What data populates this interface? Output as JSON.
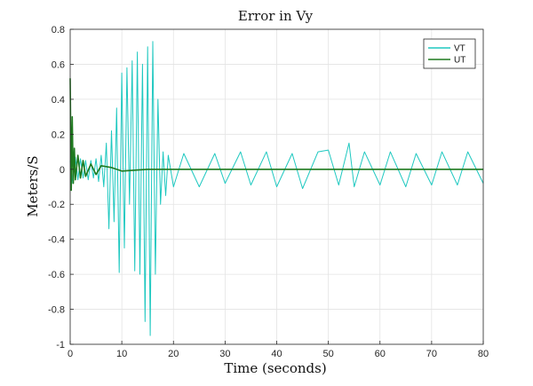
{
  "chart_data": {
    "type": "line",
    "title": "Error in Vy",
    "xlabel": "Time (seconds)",
    "ylabel": "Meters/S",
    "xlim": [
      0,
      80
    ],
    "ylim": [
      -1,
      0.8
    ],
    "x_ticks": [
      "0",
      "10",
      "20",
      "30",
      "40",
      "50",
      "60",
      "70",
      "80"
    ],
    "y_ticks": [
      "-1",
      "-0.8",
      "-0.6",
      "-0.4",
      "-0.2",
      "0",
      "0.2",
      "0.4",
      "0.6",
      "0.8"
    ],
    "grid": true,
    "legend_position": "top-right",
    "series": [
      {
        "name": "VT",
        "color": "#1ec8c0",
        "x": [
          0,
          0.5,
          1,
          1.5,
          2,
          2.5,
          3,
          3.5,
          4,
          4.5,
          5,
          5.5,
          6,
          6.5,
          7,
          7.5,
          8,
          8.5,
          9,
          9.5,
          10,
          10.5,
          11,
          11.5,
          12,
          12.5,
          13,
          13.5,
          14,
          14.5,
          15,
          15.5,
          16,
          16.5,
          17,
          17.5,
          18,
          18.5,
          19,
          20,
          22,
          25,
          28,
          30,
          33,
          35,
          38,
          40,
          43,
          45,
          48,
          50,
          52,
          54,
          55,
          57,
          60,
          62,
          65,
          67,
          70,
          72,
          75,
          77,
          80
        ],
        "y": [
          0.05,
          -0.08,
          0.07,
          -0.06,
          0.06,
          -0.05,
          0.05,
          -0.06,
          0.05,
          -0.05,
          0.06,
          -0.07,
          0.08,
          -0.1,
          0.15,
          -0.34,
          0.22,
          -0.3,
          0.35,
          -0.59,
          0.55,
          -0.45,
          0.58,
          -0.2,
          0.62,
          -0.58,
          0.67,
          -0.6,
          0.6,
          -0.87,
          0.7,
          -0.95,
          0.73,
          -0.6,
          0.4,
          -0.2,
          0.1,
          -0.15,
          0.08,
          -0.1,
          0.09,
          -0.1,
          0.09,
          -0.08,
          0.1,
          -0.09,
          0.1,
          -0.1,
          0.09,
          -0.11,
          0.1,
          0.11,
          -0.09,
          0.15,
          -0.1,
          0.1,
          -0.09,
          0.1,
          -0.1,
          0.09,
          -0.09,
          0.1,
          -0.09,
          0.1,
          -0.08
        ]
      },
      {
        "name": "UT",
        "color": "#1f7a1f",
        "x": [
          0,
          0.2,
          0.4,
          0.6,
          0.8,
          1,
          1.5,
          2,
          2.5,
          3,
          4,
          5,
          6,
          8,
          10,
          15,
          20,
          30,
          40,
          50,
          60,
          70,
          80
        ],
        "y": [
          0.52,
          -0.12,
          0.3,
          -0.08,
          0.12,
          -0.06,
          0.08,
          -0.05,
          0.05,
          -0.04,
          0.03,
          -0.03,
          0.02,
          0.01,
          -0.01,
          0.0,
          0.0,
          0.0,
          0.0,
          0.0,
          0.0,
          0.0,
          0.0
        ]
      }
    ]
  }
}
